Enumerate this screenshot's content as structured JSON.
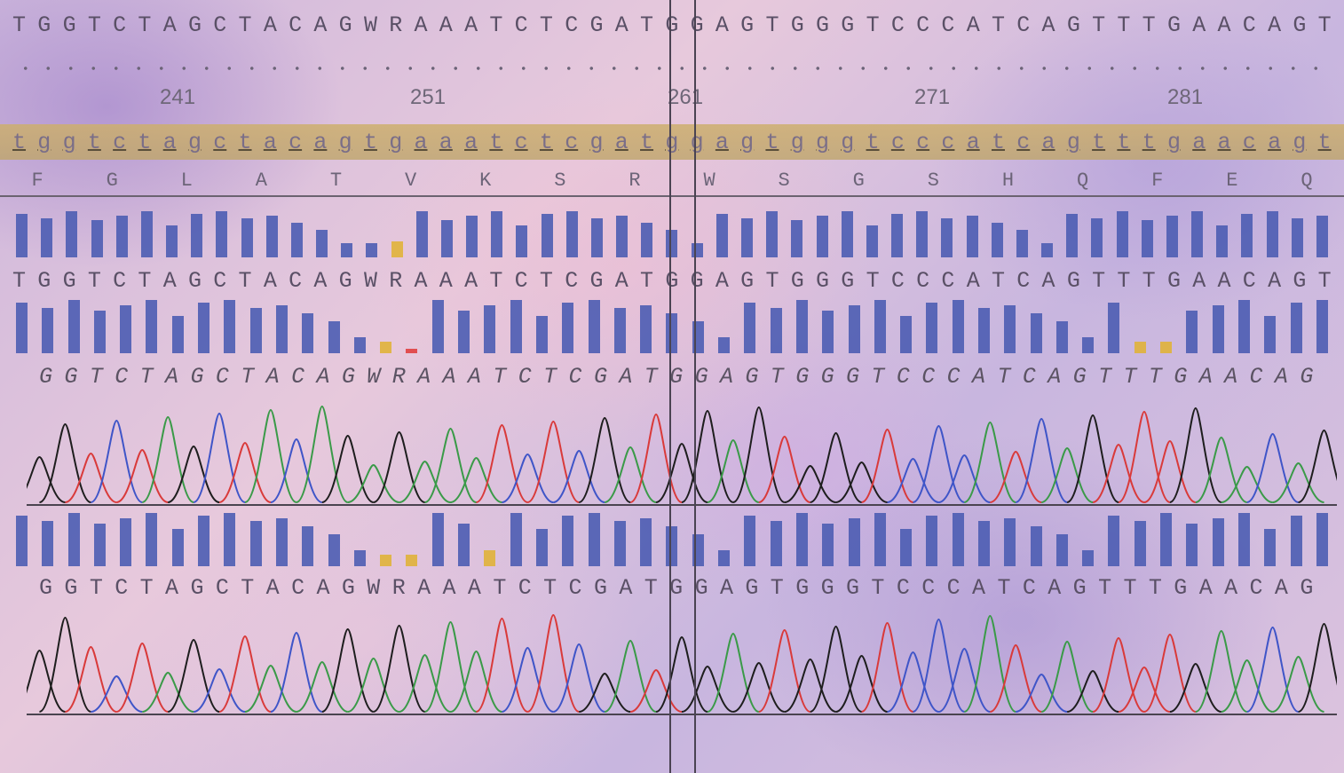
{
  "reference_sequence": "TGGTCTAGCTACAGWRAAATCTCGATGGAGTGGGTCCCATCAGTTTGAACAGT",
  "position_labels": [
    "241",
    "251",
    "261",
    "271",
    "281"
  ],
  "consensus_lower": "tggtctagctacagtgaaatctcgatggagtgggtcccatcagtttgaacagt",
  "amino_acids": [
    "F",
    "G",
    "L",
    "A",
    "T",
    "V",
    "K",
    "S",
    "R",
    "W",
    "S",
    "G",
    "S",
    "H",
    "Q",
    "F",
    "E",
    "Q"
  ],
  "read1_sequence": "TGGTCTAGCTACAGWRAAATCTCGATGGAGTGGGTCCCATCAGTTTGAACAGT",
  "read2_sequence": "GGTCTAGCTACAGWRAAATCTCGATGGAGTGGGTCCCATCAGTTTGAACAG",
  "read3_sequence": "GGTCTAGCTACAGWRAAATCTCGATGGAGTGGGTCCCATCAGTTTGAACAG",
  "colors": {
    "quality_bar": "#4c5db2",
    "low_quality": "#e0b23a",
    "mismatch": "#e04040",
    "trace_A": "#3a9a48",
    "trace_C": "#3f55c8",
    "trace_G": "#1e1e1e",
    "trace_T": "#d93a3a"
  }
}
